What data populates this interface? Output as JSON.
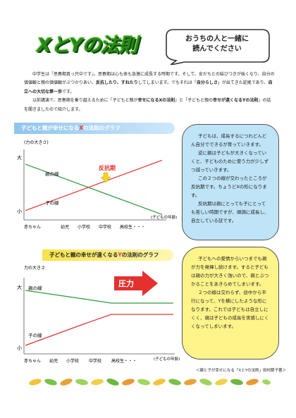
{
  "header": {
    "title": "XとYの法則",
    "bubble_line1": "おうちの人と一緒に",
    "bubble_line2": "読んでください"
  },
  "intro": {
    "p1_a": "中学生は「思春期真っ只中です」。思春期は心も体も急激に成長する時期です。そして、女だちとの結びつきが強くなり、自分の価値観と親の価値観がぶつかりあい、",
    "p1_bold": "反抗したり、すねたり",
    "p1_b": "してしまいます。でもそれは「",
    "p1_bold2": "自分らしさ",
    "p1_c": "」が出てきた証拠であり、",
    "p1_bold3": "自立への大切な第一歩",
    "p1_d": "です。",
    "p2_a": "以前講演で、思春期を乗り越えるために「子どもと親が",
    "p2_bold": "幸せになるXの法則",
    "p2_b": "」と「子どもと親の",
    "p2_bold2": "幸せが遠くなるYの法則",
    "p2_c": "」の話を聞きましたので紹介します。"
  },
  "chart1": {
    "title_a": "子どもと親が幸せになる",
    "title_x": "X",
    "title_b": "の法則のグラフ",
    "ylabel": "(力の大きさ)",
    "y_high": "大",
    "y_low": "小",
    "parent_line": "親の線",
    "child_line": "子の線",
    "annotation": "反抗期",
    "xlabel": "(子どもの年齢)",
    "x_ticks": [
      "赤ちゃん",
      "幼児",
      "小学校",
      "中学校",
      "高校生・・・"
    ],
    "parent_start": 0.82,
    "parent_end": 0.06,
    "child_start": 0.12,
    "child_end": 0.88
  },
  "note1": {
    "p1": "子どもは、成長するにつれどんどん自分でできるが育っていきます。",
    "p2": "逆に親は子どもが大きくなっていくと、子どものために使う力が少しずつ減っていきます。",
    "p3": "この２つの線が交わったところが反抗期です。ちょうどXの形になります。",
    "p4": "反抗期は親にとっても子にとっても苦しい時期ですが、順調に成長し、自立している証です。"
  },
  "chart2": {
    "title_a": "子どもと親の幸せが遠くなる",
    "title_y": "Y",
    "title_b": "の法則のグラフ",
    "ylabel": "力の大きさ",
    "y_high": "大",
    "y_low": "小",
    "parent_line": "親の線",
    "child_line": "子の線",
    "annotation": "圧力",
    "xlabel": "(子どもの年齢)",
    "x_ticks": [
      "赤ちゃん",
      "幼児",
      "小学校",
      "中学校",
      "高校生・・・"
    ]
  },
  "note2": {
    "p1": "子どもへの愛情からいつまでも親が力を発揮し続けます。すると子どもは親の力が大きく強いので、親とぶつかることをあきらめてしまいます。",
    "p2": "２つの線は交わらず、途中から平行になって、Yを横にしたような形になります。これでは子どもは自立しにくく、親は子どもの成長を実感しにくくなってしまいます。"
  },
  "footer": {
    "credit": "＜親と子が幸せになる「XとYの法則」田村節子著＞"
  },
  "colors": {
    "parent": "#2f9a3a",
    "child": "#e53030",
    "title_green": "#2a8a1a",
    "note1_bg": "#bfe4f7",
    "note2_bg": "#fff48a"
  }
}
